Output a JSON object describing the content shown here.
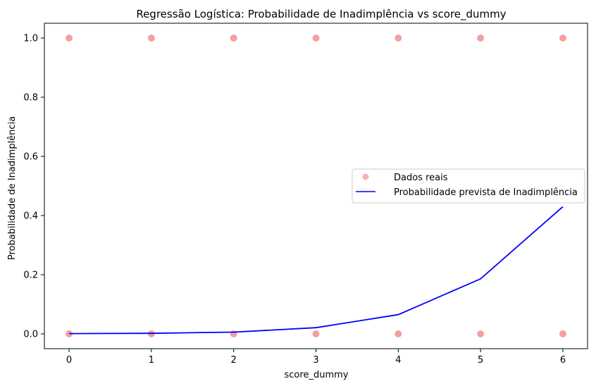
{
  "chart_data": {
    "type": "scatter",
    "title": "Regressão Logística: Probabilidade de Inadimplência vs score_dummy",
    "xlabel": "score_dummy",
    "ylabel": "Probabilidade de Inadimplência",
    "xlim": [
      -0.3,
      6.3
    ],
    "ylim": [
      -0.05,
      1.05
    ],
    "xticks": [
      0,
      1,
      2,
      3,
      4,
      5,
      6
    ],
    "yticks": [
      0.0,
      0.2,
      0.4,
      0.6,
      0.8,
      1.0
    ],
    "xtick_labels": [
      "0",
      "1",
      "2",
      "3",
      "4",
      "5",
      "6"
    ],
    "ytick_labels": [
      "0.0",
      "0.2",
      "0.4",
      "0.6",
      "0.8",
      "1.0"
    ],
    "grid": false,
    "legend_position": "center-right",
    "series": [
      {
        "name": "Dados reais",
        "kind": "scatter",
        "color": "#f08080",
        "x": [
          0,
          1,
          2,
          3,
          4,
          5,
          6,
          0,
          1,
          2,
          3,
          4,
          5,
          6
        ],
        "y": [
          1,
          1,
          1,
          1,
          1,
          1,
          1,
          0,
          0,
          0,
          0,
          0,
          0,
          0
        ]
      },
      {
        "name": "Probabilidade prevista de Inadimplência",
        "kind": "line",
        "color": "#0000ff",
        "x": [
          0,
          1,
          2,
          3,
          4,
          5,
          6
        ],
        "y": [
          0.001,
          0.002,
          0.006,
          0.021,
          0.065,
          0.186,
          0.43
        ]
      }
    ]
  }
}
